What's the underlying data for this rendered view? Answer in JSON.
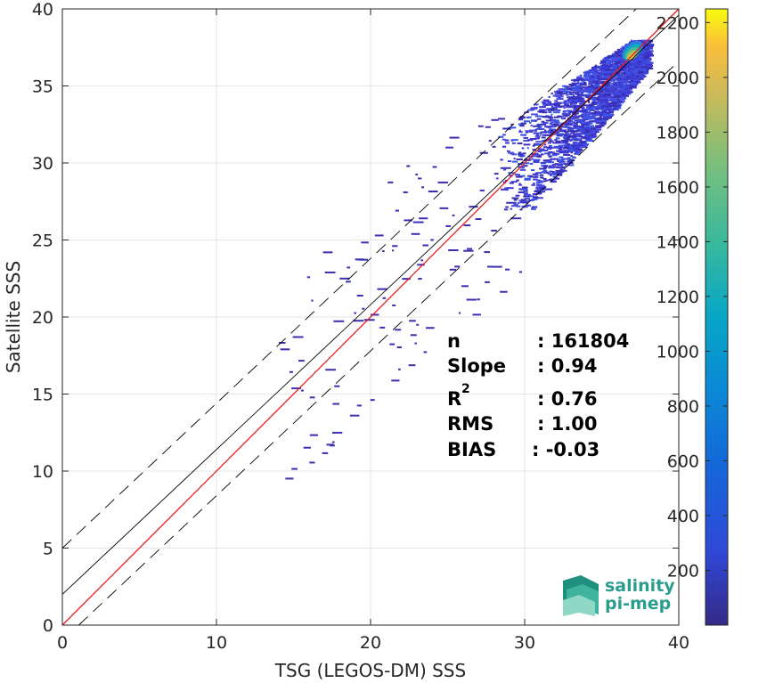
{
  "chart_data": {
    "type": "heatmap",
    "xlabel": "TSG (LEGOS-DM) SSS",
    "ylabel": "Satellite SSS",
    "xlim": [
      0,
      40
    ],
    "ylim": [
      0,
      40
    ],
    "xticks": [
      "0",
      "10",
      "20",
      "30",
      "40"
    ],
    "yticks": [
      "0",
      "5",
      "10",
      "15",
      "20",
      "25",
      "30",
      "35",
      "40"
    ],
    "grid": true,
    "colorbar": {
      "min": 0,
      "max": 2250,
      "ticks": [
        "200",
        "400",
        "600",
        "800",
        "1000",
        "1200",
        "1400",
        "1600",
        "1800",
        "2000",
        "2200"
      ],
      "colormap": "parula"
    },
    "lines": [
      {
        "kind": "identity",
        "color": "#e41a1c",
        "slope": 1,
        "intercept": 0
      },
      {
        "kind": "regression",
        "color": "#000000",
        "slope": 0.94,
        "intercept": 2.0
      },
      {
        "kind": "upper-bound",
        "color": "#000000",
        "dashed": true,
        "slope": 0.94,
        "intercept": 5.0
      },
      {
        "kind": "lower-bound",
        "color": "#000000",
        "dashed": true,
        "slope": 0.94,
        "intercept": -1.0
      }
    ],
    "density_core": {
      "x": [
        28,
        38
      ],
      "y": [
        27,
        38
      ],
      "peak": [
        37,
        37.3
      ]
    }
  },
  "stats": {
    "n_label": "n",
    "n_value": ": 161804",
    "slope_label": "Slope",
    "slope_value": ": 0.94",
    "r2_label": "R",
    "r2_sup": "2",
    "r2_value": ": 0.76",
    "rms_label": "RMS",
    "rms_value": ": 1.00",
    "bias_label": "BIAS",
    "bias_value": ": -0.03"
  },
  "logo": {
    "line1": "salinity",
    "line2": "pi-mep"
  }
}
